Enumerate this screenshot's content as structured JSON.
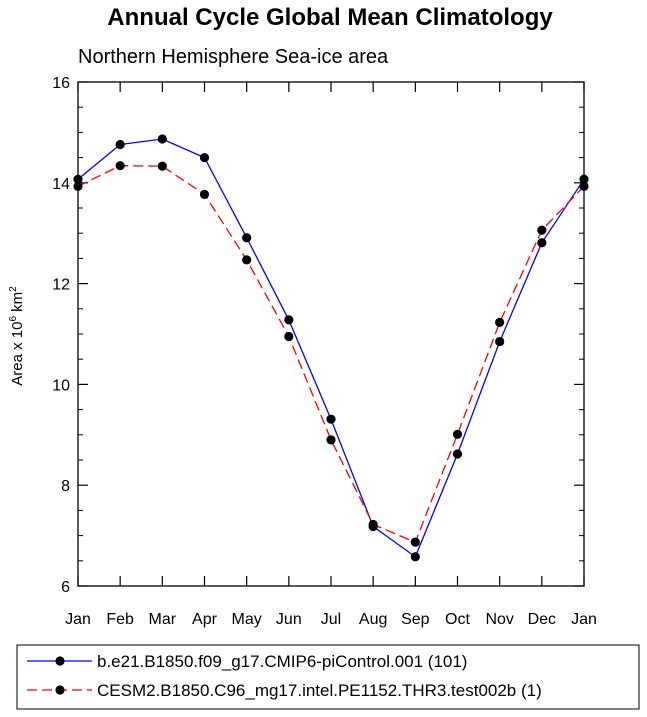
{
  "chart_data": {
    "type": "line",
    "title": "Annual Cycle Global Mean Climatology",
    "subtitle": "Northern Hemisphere Sea-ice area",
    "ylabel": {
      "base": "Area x 10",
      "exp1": "6",
      "unit": " km",
      "exp2": "2"
    },
    "xlabel": "",
    "categories": [
      "Jan",
      "Feb",
      "Mar",
      "Apr",
      "May",
      "Jun",
      "Jul",
      "Aug",
      "Sep",
      "Oct",
      "Nov",
      "Dec",
      "Jan"
    ],
    "ylim": [
      6,
      16
    ],
    "yticks": [
      "6",
      "8",
      "10",
      "12",
      "14",
      "16"
    ],
    "series": [
      {
        "name": "b.e21.B1850.f09_g17.CMIP6-piControl.001 (101)",
        "color": "#0000ff",
        "dash": "solid",
        "values": [
          14.07,
          14.76,
          14.87,
          14.5,
          12.91,
          11.28,
          9.31,
          7.18,
          6.58,
          8.62,
          10.85,
          12.81,
          14.07
        ]
      },
      {
        "name": "CESM2.B1850.C96_mg17.intel.PE1152.THR3.test002b (1)",
        "color": "#ff0000",
        "dash": "dashed",
        "values": [
          13.93,
          14.34,
          14.33,
          13.77,
          12.47,
          10.95,
          8.9,
          7.22,
          6.87,
          9.01,
          11.23,
          13.06,
          13.93
        ]
      }
    ]
  }
}
